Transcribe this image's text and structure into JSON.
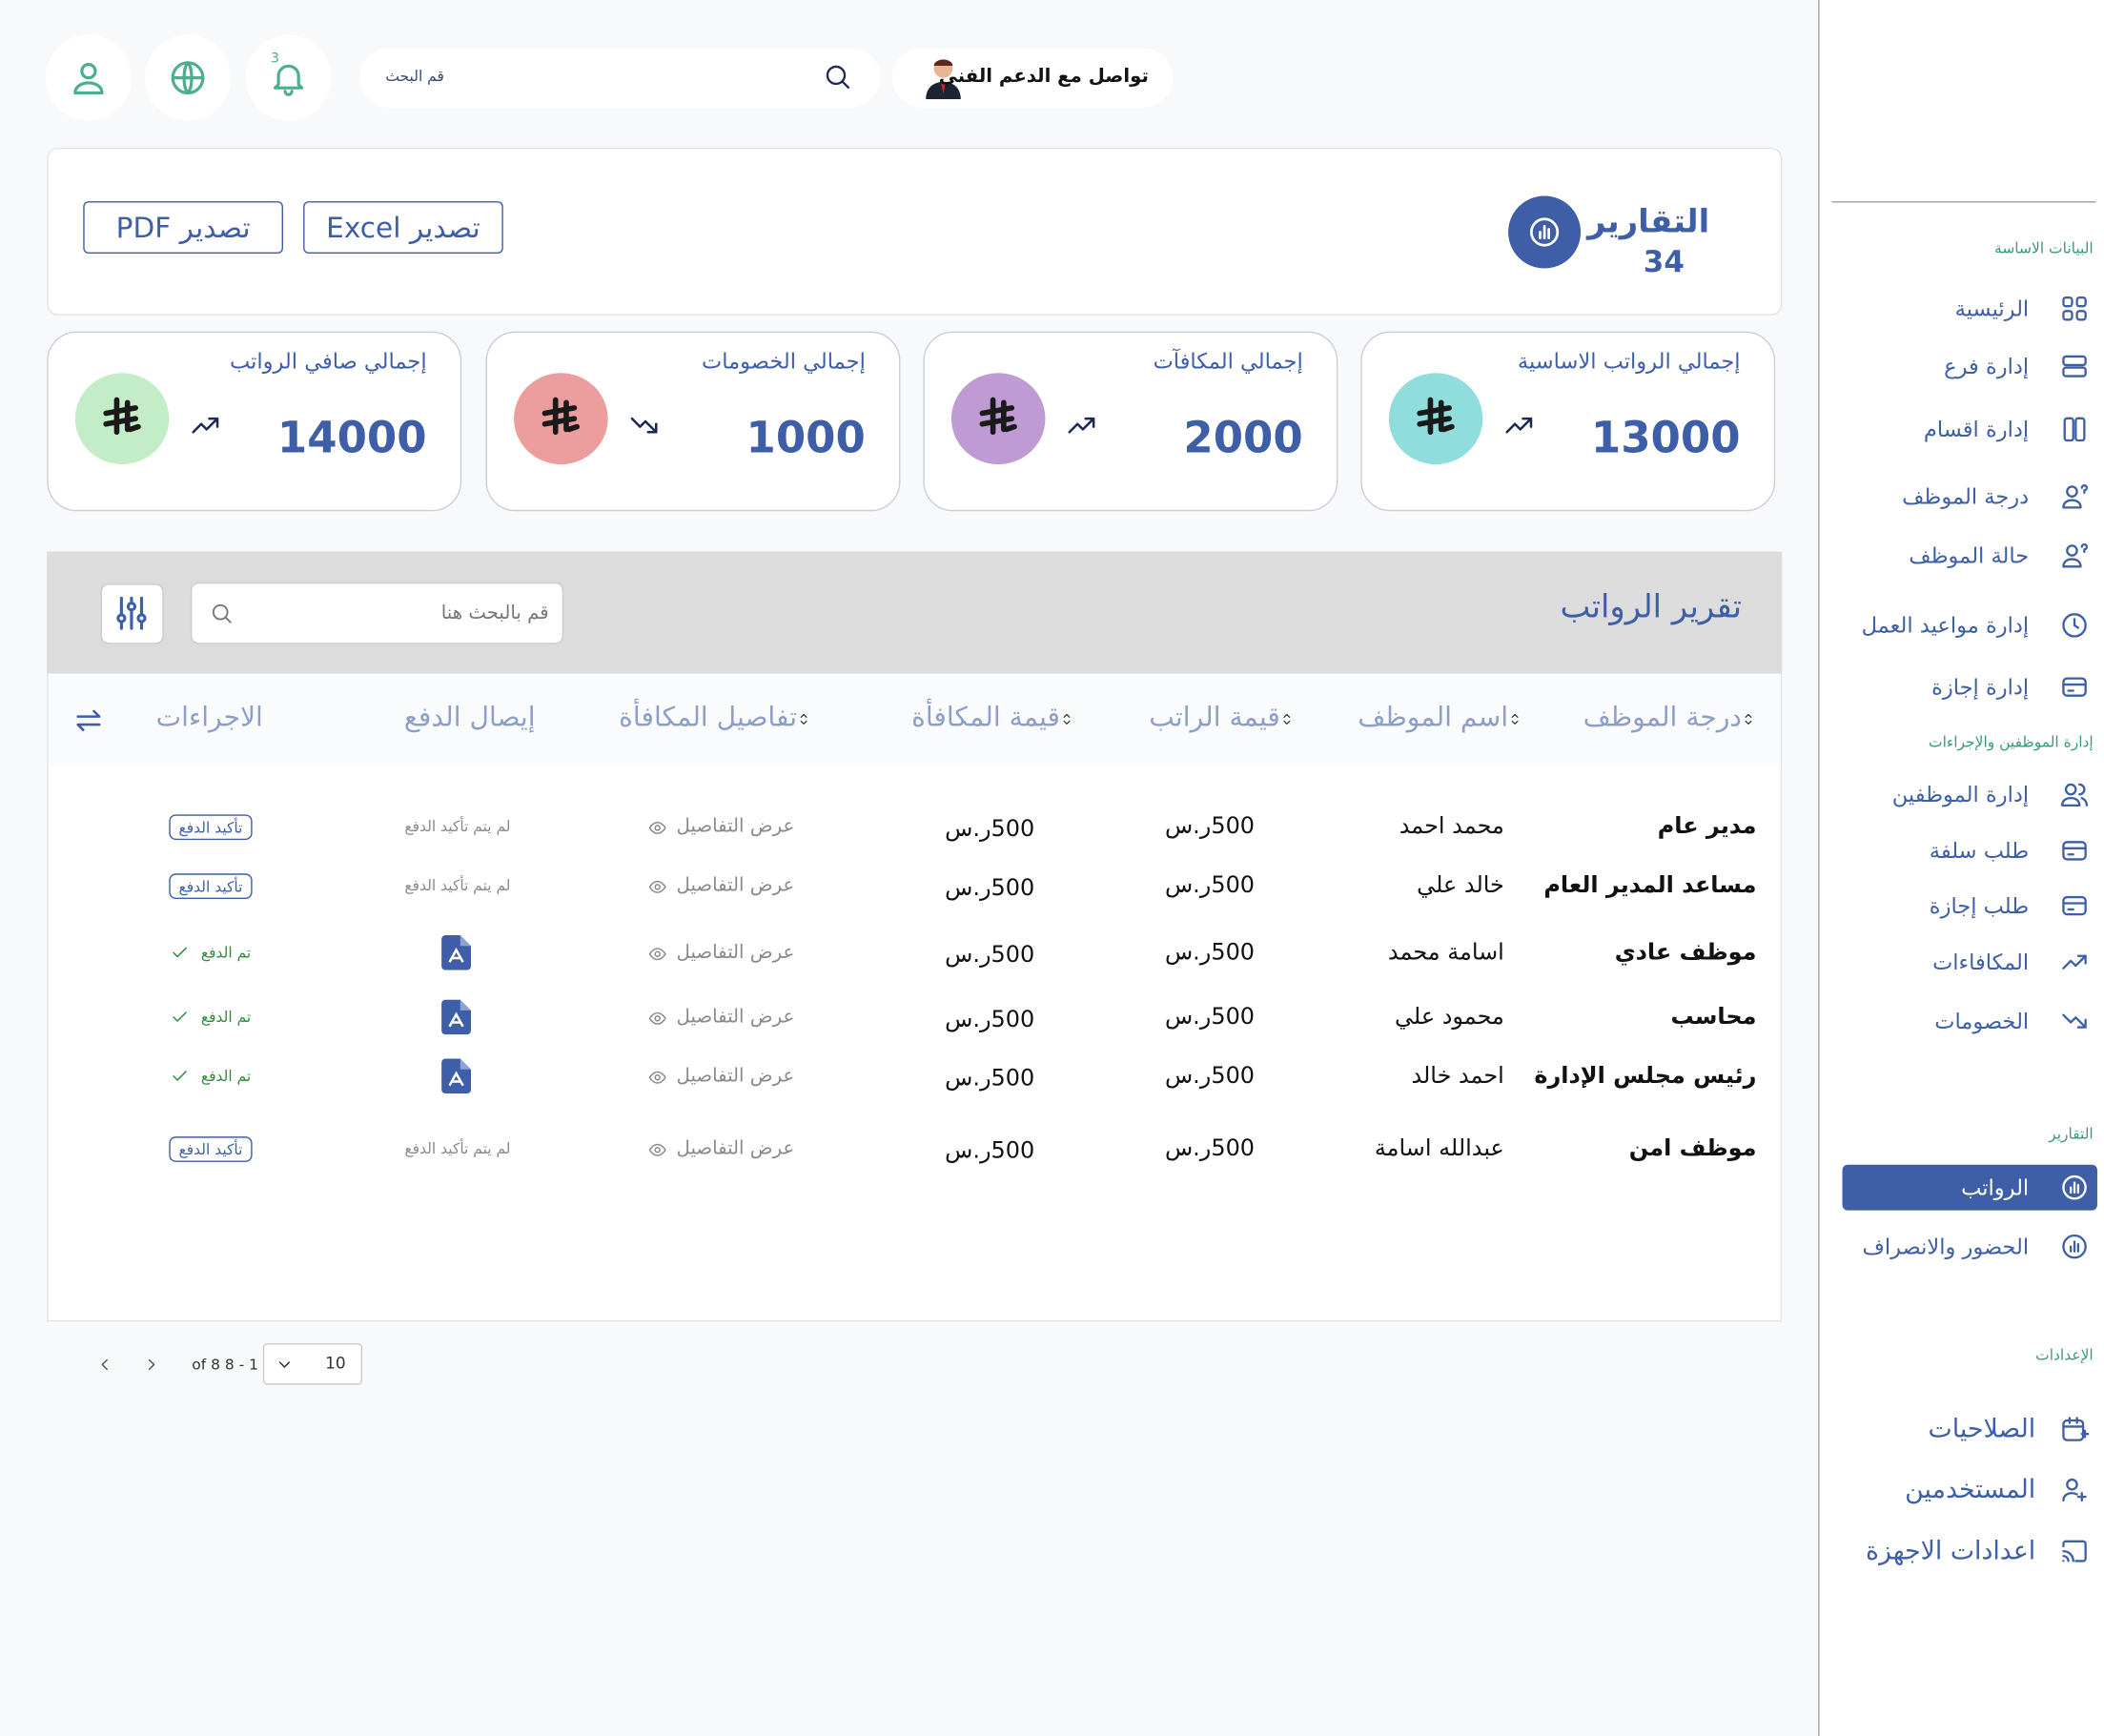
{
  "topbar": {
    "support": "تواصل مع الدعم الفني",
    "search_placeholder": "قم البحث",
    "notifications": 3
  },
  "header": {
    "title": "التقارير",
    "count": 34,
    "export_excel": "تصدير Excel",
    "export_pdf": "تصدير PDF"
  },
  "stats": [
    {
      "label": "إجمالي الرواتب الاساسية",
      "value": 13000
    },
    {
      "label": "إجمالي المكافآت",
      "value": 2000
    },
    {
      "label": "إجمالي الخصومات",
      "value": 1000
    },
    {
      "label": "إجمالي صافي الرواتب",
      "value": 14000
    }
  ],
  "table": {
    "title": "تقرير الرواتب",
    "search_placeholder": "قم بالبحث هنا",
    "columns": [
      "درجة الموظف",
      "اسم الموظف",
      "قيمة الراتب",
      "قيمة المكافأة",
      "تفاصيل المكافأة",
      "إيصال الدفع",
      "الاجراءات"
    ],
    "rows": [
      {
        "grade": "مدير عام",
        "name": "محمد احمد",
        "salary": "500ر.س",
        "bonus": "500ر.س",
        "details": "عرض التفاصيل",
        "receipt": "لم يتم تأكيد الدفع",
        "action": "تأكيد الدفع"
      },
      {
        "grade": "مساعد المدير العام",
        "name": "خالد علي",
        "salary": "500ر.س",
        "bonus": "500ر.س",
        "details": "عرض التفاصيل",
        "receipt": "لم يتم تأكيد الدفع",
        "action": "تأكيد الدفع"
      },
      {
        "grade": "موظف عادي",
        "name": "اسامة محمد",
        "salary": "500ر.س",
        "bonus": "500ر.س",
        "details": "عرض التفاصيل",
        "receipt": null,
        "action": "تم الدفع"
      },
      {
        "grade": "محاسب",
        "name": "محمود علي",
        "salary": "500ر.س",
        "bonus": "500ر.س",
        "details": "عرض التفاصيل",
        "receipt": null,
        "action": "تم الدفع"
      },
      {
        "grade": "رئيس مجلس الإدارة",
        "name": "احمد خالد",
        "salary": "500ر.س",
        "bonus": "500ر.س",
        "details": "عرض التفاصيل",
        "receipt": null,
        "action": "تم الدفع"
      },
      {
        "grade": "موظف امن",
        "name": "عبدالله اسامة",
        "salary": "500ر.س",
        "bonus": "500ر.س",
        "details": "عرض التفاصيل",
        "receipt": "لم يتم تأكيد الدفع",
        "action": "تأكيد الدفع"
      }
    ]
  },
  "pagination": {
    "page_size": 10,
    "range": "of 8 8 - 1"
  },
  "sidebar": [
    {
      "title": "البيانات الاساسة",
      "items": [
        "الرئيسية",
        "إدارة فرع",
        "إدارة اقسام",
        "درجة الموظف",
        "حالة الموظف",
        "إدارة مواعيد العمل",
        "إدارة إجازة"
      ]
    },
    {
      "title": "إدارة الموظفين والإجراءات",
      "items": [
        "إدارة الموظفين",
        "طلب سلفة",
        "طلب إجازة",
        "المكافاءات",
        "الخصومات"
      ]
    },
    {
      "title": "التقارير",
      "items": [
        "الرواتب",
        "الحضور والانصراف"
      ],
      "active": 0
    },
    {
      "title": "الإعدادات",
      "items": [
        "الصلاحيات",
        "المستخدمين",
        "اعدادات الاجهزة"
      ]
    }
  ]
}
